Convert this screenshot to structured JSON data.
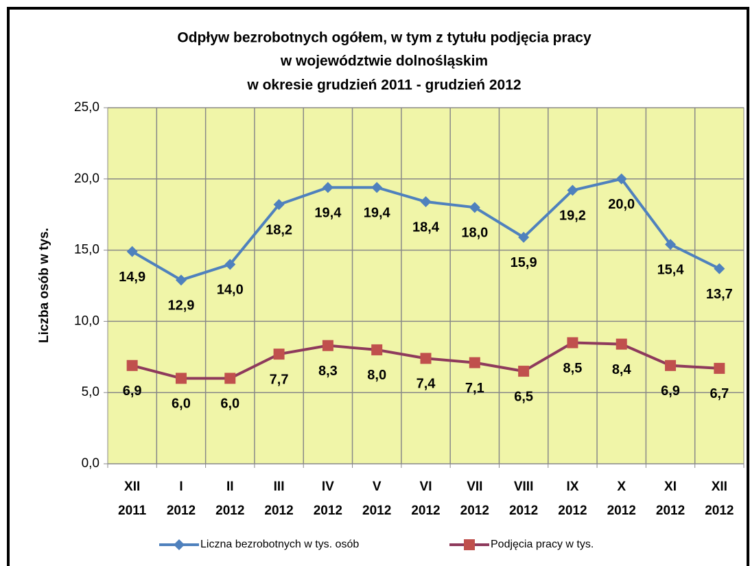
{
  "chart_data": {
    "type": "line",
    "title": [
      "Odpływ bezrobotnych ogółem, w tym z tytułu podjęcia pracy",
      "w województwie dolnośląskim",
      "w okresie grudzień 2011 - grudzień 2012"
    ],
    "y_label": "Liczba osób w tys.",
    "categories": [
      [
        "XII",
        "2011"
      ],
      [
        "I",
        "2012"
      ],
      [
        "II",
        "2012"
      ],
      [
        "III",
        "2012"
      ],
      [
        "IV",
        "2012"
      ],
      [
        "V",
        "2012"
      ],
      [
        "VI",
        "2012"
      ],
      [
        "VII",
        "2012"
      ],
      [
        "VIII",
        "2012"
      ],
      [
        "IX",
        "2012"
      ],
      [
        "X",
        "2012"
      ],
      [
        "XI",
        "2012"
      ],
      [
        "XII",
        "2012"
      ]
    ],
    "series": [
      {
        "name": "Liczna bezrobotnych w tys. osób",
        "color": "#4f81bd",
        "marker": "diamond",
        "marker_color": "#4f81bd",
        "values": [
          14.9,
          12.9,
          14.0,
          18.2,
          19.4,
          19.4,
          18.4,
          18.0,
          15.9,
          19.2,
          20.0,
          15.4,
          13.7
        ],
        "value_labels": [
          "14,9",
          "12,9",
          "14,0",
          "18,2",
          "19,4",
          "19,4",
          "18,4",
          "18,0",
          "15,9",
          "19,2",
          "20,0",
          "15,4",
          "13,7"
        ]
      },
      {
        "name": "Podjęcia pracy w tys.",
        "color": "#8e3a5c",
        "marker": "square",
        "marker_color": "#c0504d",
        "values": [
          6.9,
          6.0,
          6.0,
          7.7,
          8.3,
          8.0,
          7.4,
          7.1,
          6.5,
          8.5,
          8.4,
          6.9,
          6.7
        ],
        "value_labels": [
          "6,9",
          "6,0",
          "6,0",
          "7,7",
          "8,3",
          "8,0",
          "7,4",
          "7,1",
          "6,5",
          "8,5",
          "8,4",
          "6,9",
          "6,7"
        ]
      }
    ],
    "ylim": [
      0,
      25
    ],
    "yticks": [
      {
        "value": 0,
        "label": "0,0"
      },
      {
        "value": 5,
        "label": "5,0"
      },
      {
        "value": 10,
        "label": "10,0"
      },
      {
        "value": 15,
        "label": "15,0"
      },
      {
        "value": 20,
        "label": "20,0"
      },
      {
        "value": 25,
        "label": "25,0"
      }
    ],
    "grid": true,
    "plot_background": "#f0f5a8",
    "legend": "bottom"
  }
}
